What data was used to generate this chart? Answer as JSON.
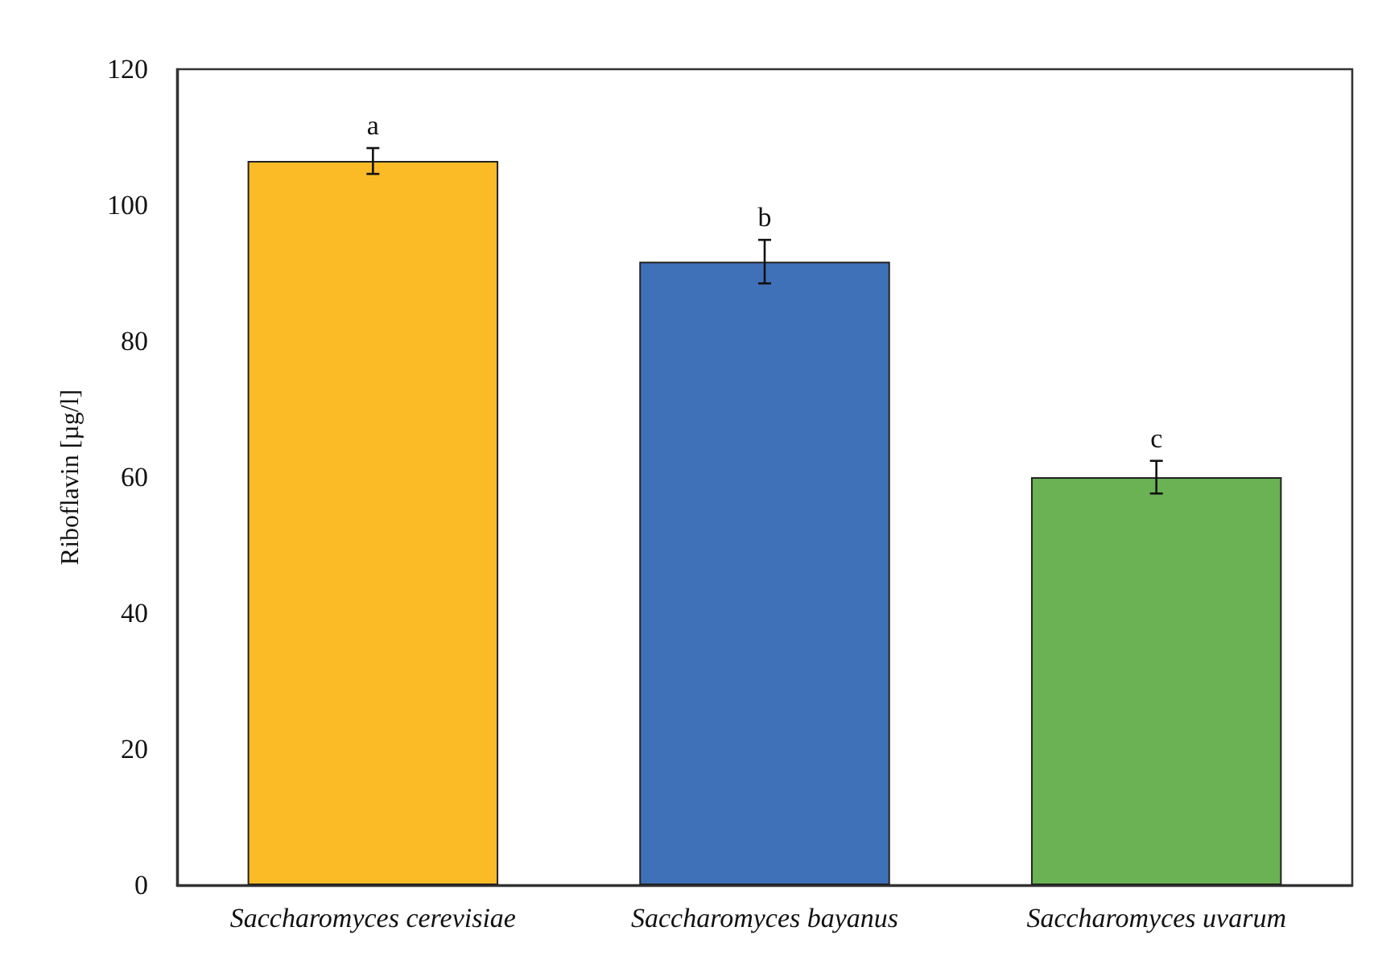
{
  "chart_data": {
    "type": "bar",
    "ylabel": "Riboflavin [µg/l]",
    "categories": [
      "Saccharomyces cerevisiae",
      "Saccharomyces bayanus",
      "Saccharomyces uvarum"
    ],
    "values": [
      106.5,
      91.7,
      60
    ],
    "colors": [
      "#fbbb26",
      "#3f71b8",
      "#6ab254"
    ],
    "errors": [
      1.9,
      3.2,
      2.4
    ],
    "ylim": [
      0,
      120
    ],
    "yticks": [
      0,
      20,
      40,
      60,
      80,
      100,
      120
    ],
    "grid": false,
    "annotations": [
      "a",
      "b",
      "c"
    ]
  }
}
